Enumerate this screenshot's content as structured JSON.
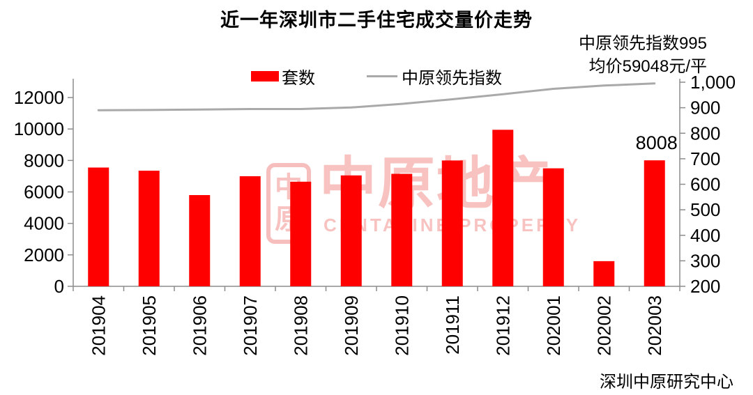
{
  "title": "近一年深圳市二手住宅成交量价走势",
  "legend": {
    "items": [
      {
        "label": "套数",
        "marker": "red-bar-swatch"
      },
      {
        "label": "中原领先指数",
        "marker": "gray-line-swatch"
      }
    ]
  },
  "annotation": {
    "line1": "中原领先指数995",
    "line2": "均价59048元/平"
  },
  "source": "深圳中原研究中心",
  "watermark": {
    "seal_top": "中",
    "seal_bottom": "原",
    "name": "中原地产",
    "caption": "CENTALINE PROPERTY"
  },
  "colors": {
    "bar": "#fe0000",
    "line": "#a9a9a9",
    "axis": "#8c8c8c",
    "text": "#000000",
    "watermark": "#f2928e"
  },
  "chart_data": {
    "type": "bar+line",
    "title": "近一年深圳市二手住宅成交量价走势",
    "categories": [
      "201904",
      "201905",
      "201906",
      "201907",
      "201908",
      "201909",
      "201910",
      "201911",
      "201912",
      "202001",
      "202002",
      "202003"
    ],
    "series": [
      {
        "name": "套数",
        "type": "bar",
        "axis": "left",
        "values": [
          7550,
          7350,
          5800,
          7000,
          6650,
          7050,
          7150,
          8000,
          9950,
          7500,
          1600,
          8008
        ]
      },
      {
        "name": "中原领先指数",
        "type": "line",
        "axis": "right",
        "values": [
          890,
          891,
          893,
          895,
          895,
          901,
          915,
          933,
          953,
          974,
          987,
          995
        ]
      }
    ],
    "left_axis": {
      "min": 0,
      "max": 12000,
      "step": 2000,
      "tick_values": [
        0,
        2000,
        4000,
        6000,
        8000,
        10000,
        12000
      ],
      "tick_labels": [
        "0",
        "2000",
        "4000",
        "6000",
        "8000",
        "10000",
        "12000"
      ]
    },
    "right_axis": {
      "min": 200,
      "max": 1000,
      "step": 100,
      "tick_values": [
        200,
        300,
        400,
        500,
        600,
        700,
        800,
        900,
        1000
      ],
      "tick_labels": [
        "200",
        "300",
        "400",
        "500",
        "600",
        "700",
        "800",
        "900",
        "1,000"
      ]
    },
    "bar_value_label": {
      "category": "202003",
      "text": "8008"
    },
    "grid": false,
    "legend_position": "top-center"
  }
}
